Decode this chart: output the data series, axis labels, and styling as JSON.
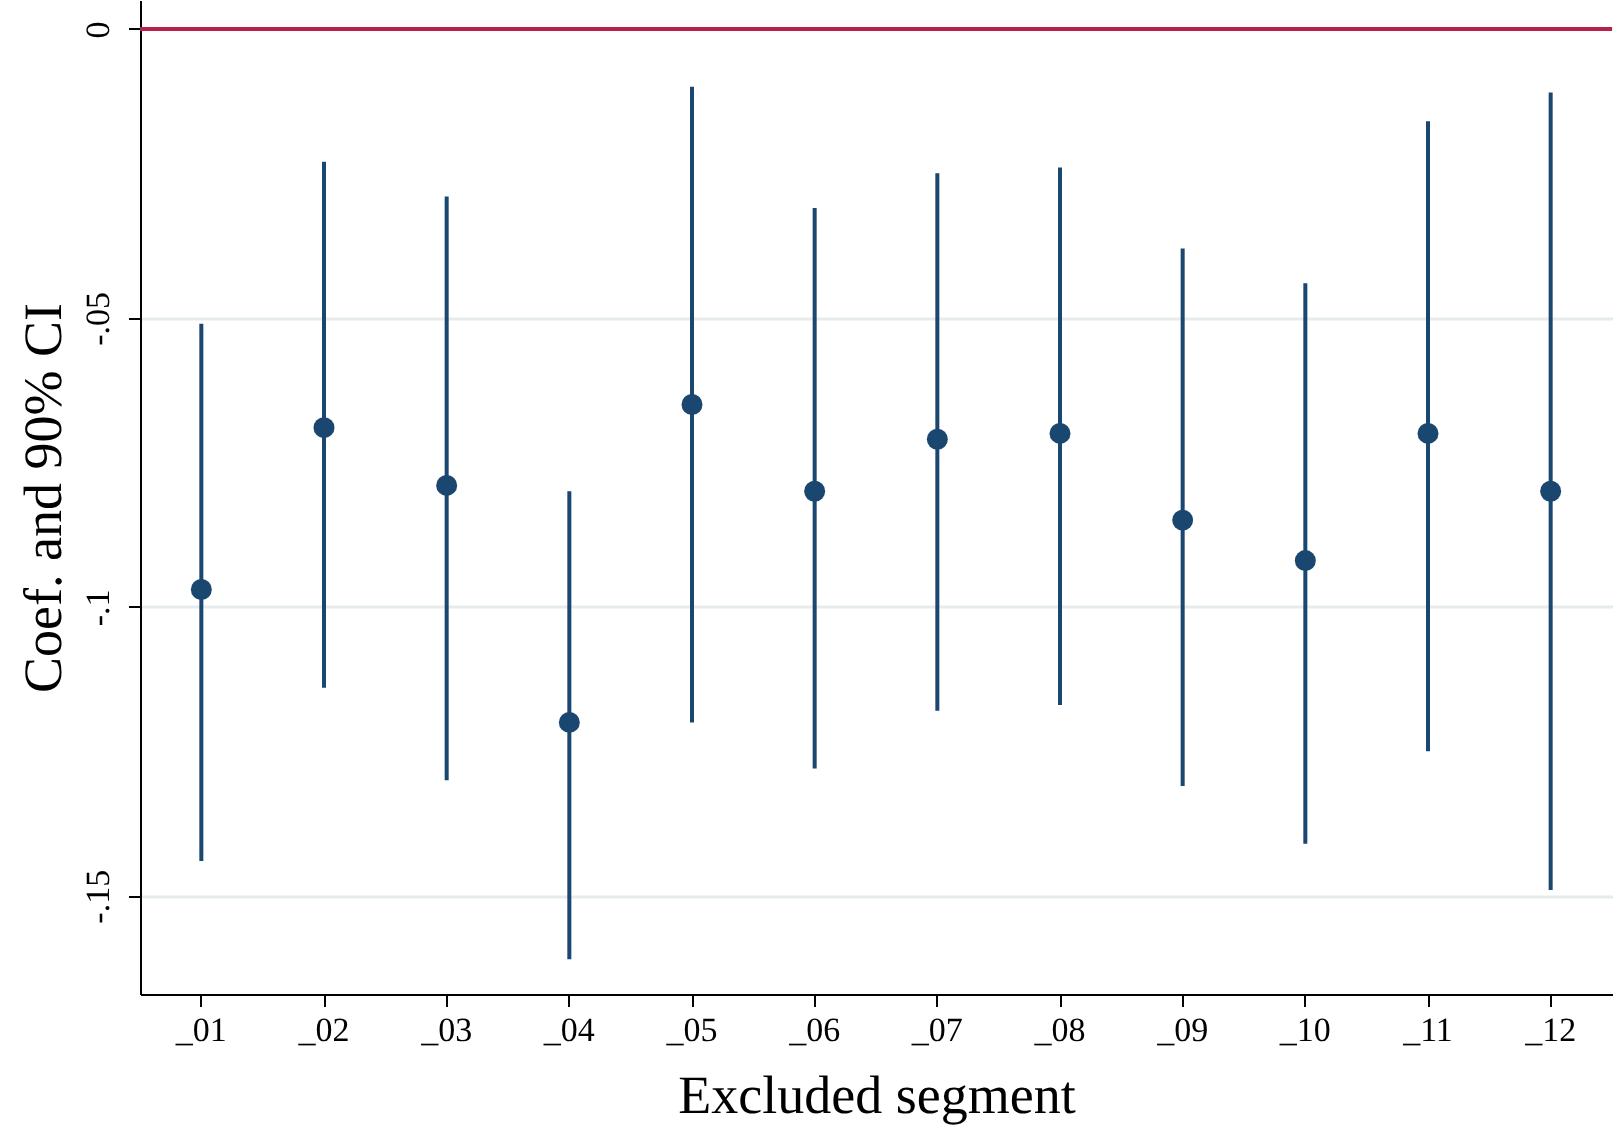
{
  "chart_data": {
    "type": "scatter",
    "xlabel": "Excluded segment",
    "ylabel": "Coef. and 90% CI",
    "categories": [
      "_01",
      "_02",
      "_03",
      "_04",
      "_05",
      "_06",
      "_07",
      "_08",
      "_09",
      "_10",
      "_11",
      "_12"
    ],
    "series": [
      {
        "color": "#1a476f",
        "values": [
          -0.097,
          -0.069,
          -0.079,
          -0.12,
          -0.065,
          -0.08,
          -0.071,
          -0.07,
          -0.085,
          -0.092,
          -0.07,
          -0.08
        ],
        "errors": [
          [
            -0.144,
            -0.051
          ],
          [
            -0.114,
            -0.023
          ],
          [
            -0.13,
            -0.029
          ],
          [
            -0.161,
            -0.08
          ],
          [
            -0.12,
            -0.01
          ],
          [
            -0.128,
            -0.031
          ],
          [
            -0.118,
            -0.025
          ],
          [
            -0.117,
            -0.024
          ],
          [
            -0.131,
            -0.038
          ],
          [
            -0.141,
            -0.044
          ],
          [
            -0.125,
            -0.016
          ],
          [
            -0.149,
            -0.011
          ]
        ]
      }
    ],
    "ylim": [
      -0.167,
      0.005
    ],
    "yticks": [
      0,
      {
        "value": -0.05,
        "label": "-.05"
      },
      {
        "value": -0.1,
        "label": "-.1"
      },
      {
        "value": -0.15,
        "label": "-.15"
      }
    ],
    "grid": "y",
    "marker": "circle",
    "ref_lines": [
      {
        "axis": "y",
        "value": 0,
        "color": "#b5214a"
      }
    ]
  }
}
